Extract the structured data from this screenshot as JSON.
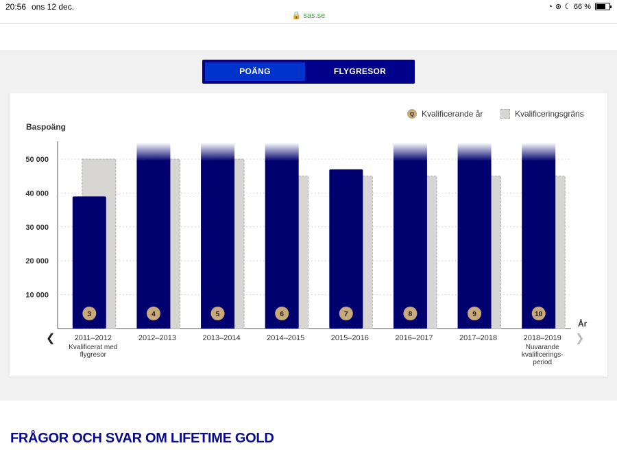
{
  "status_bar": {
    "time": "20:56",
    "date": "ons 12 dec.",
    "url": "sas.se",
    "battery": "66 %"
  },
  "toggle": {
    "points_label": "POÄNG",
    "trips_label": "FLYGRESOR"
  },
  "legend": {
    "qualifying_year": "Kvalificerande år",
    "qualifying_limit": "Kvalificeringsgräns",
    "q_marker": "Q"
  },
  "section_heading": "FRÅGOR OCH SVAR OM LIFETIME GOLD",
  "colors": {
    "bar": "#00006e",
    "limit": "#d8d6d3",
    "badge": "#c9a97a"
  },
  "chart_data": {
    "type": "bar",
    "ylabel": "Baspoäng",
    "xlabel": "År",
    "ylim": [
      0,
      55000
    ],
    "yticks": [
      10000,
      20000,
      30000,
      40000,
      50000
    ],
    "ytick_labels": [
      "10 000",
      "20 000",
      "30 000",
      "40 000",
      "50 000"
    ],
    "categories": [
      "2011–2012",
      "2012–2013",
      "2013–2014",
      "2014–2015",
      "2015–2016",
      "2016–2017",
      "2017–2018",
      "2018–2019"
    ],
    "category_notes": [
      [
        "Kvalificerat med",
        "flygresor"
      ],
      [],
      [],
      [],
      [],
      [],
      [],
      [
        "Nuvarande",
        "kvalificerings-",
        "period"
      ]
    ],
    "series": [
      {
        "name": "Kvalificerande år",
        "values": [
          39000,
          55000,
          55000,
          55000,
          47000,
          55000,
          55000,
          55000
        ],
        "exceeds_axis": [
          false,
          true,
          true,
          true,
          false,
          true,
          true,
          true
        ]
      },
      {
        "name": "Kvalificeringsgräns",
        "values": [
          50000,
          50000,
          50000,
          45000,
          45000,
          45000,
          45000,
          45000
        ]
      }
    ],
    "badges": [
      "3",
      "4",
      "5",
      "6",
      "7",
      "8",
      "9",
      "10"
    ],
    "grid": true
  }
}
